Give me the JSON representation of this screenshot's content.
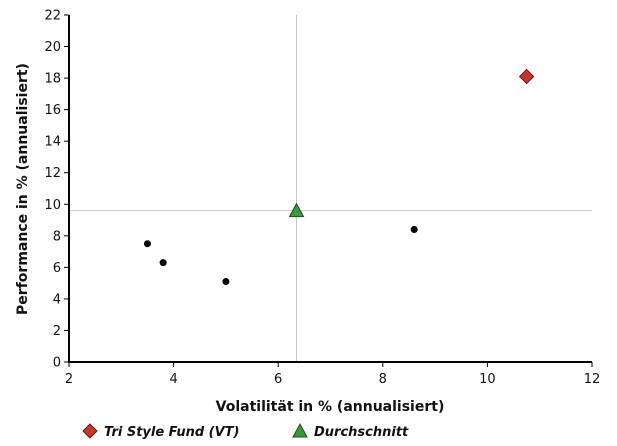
{
  "chart_data": {
    "type": "scatter",
    "xlabel": "Volatilität in % (annualisiert)",
    "ylabel": "Performance in % (annualisiert)",
    "xlim": [
      2,
      12
    ],
    "ylim": [
      0,
      22
    ],
    "x_ticks": [
      2,
      4,
      6,
      8,
      10,
      12
    ],
    "y_ticks": [
      0,
      2,
      4,
      6,
      8,
      10,
      12,
      14,
      16,
      18,
      20,
      22
    ],
    "grid": false,
    "series": [
      {
        "name": "Tri Style Fund (VT)",
        "marker": "diamond",
        "color": "#c0392b",
        "points": [
          {
            "x": 10.75,
            "y": 18.1
          }
        ]
      },
      {
        "name": "Durchschnitt",
        "marker": "triangle",
        "color": "#3a9a3a",
        "points": [
          {
            "x": 6.35,
            "y": 9.6
          }
        ]
      },
      {
        "marker": "circle",
        "color": "#000000",
        "points": [
          {
            "x": 3.5,
            "y": 7.5
          },
          {
            "x": 3.8,
            "y": 6.3
          },
          {
            "x": 5.0,
            "y": 5.1
          },
          {
            "x": 8.6,
            "y": 8.4
          }
        ]
      }
    ],
    "reference_lines": {
      "x": 6.35,
      "y": 9.6
    },
    "legend": {
      "placement": "bottom-left",
      "items": [
        {
          "label": "Tri Style Fund (VT)",
          "marker": "diamond",
          "color": "#c0392b"
        },
        {
          "label": "Durchschnitt",
          "marker": "triangle",
          "color": "#3a9a3a"
        }
      ]
    }
  }
}
